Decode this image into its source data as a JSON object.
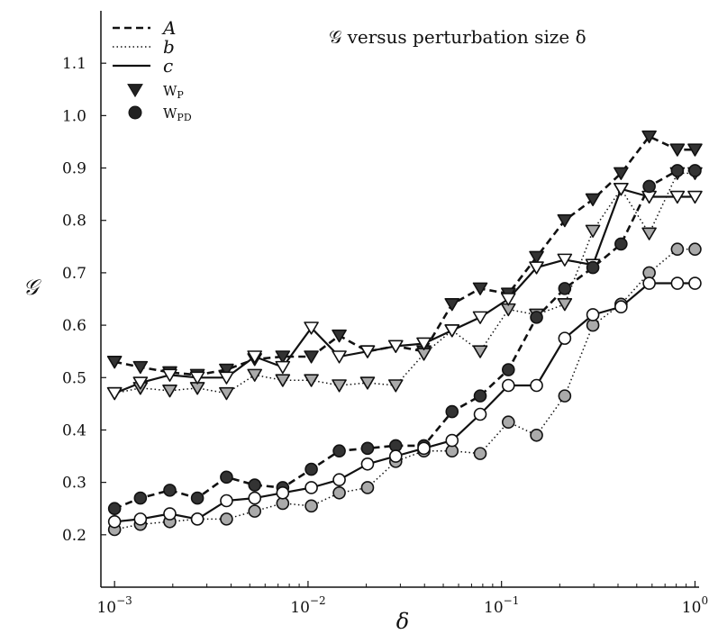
{
  "chart_data": {
    "type": "line",
    "title": "𝒢 versus perturbation size δ",
    "xlabel": "δ",
    "ylabel": "𝒢",
    "xscale": "log",
    "xlim": [
      0.00085,
      1.05
    ],
    "ylim": [
      0.1,
      1.2
    ],
    "y_ticks": [
      0.2,
      0.3,
      0.4,
      0.5,
      0.6,
      0.7,
      0.8,
      0.9,
      1.0,
      1.1
    ],
    "y_tick_labels": [
      "0.2",
      "0.3",
      "0.4",
      "0.5",
      "0.6",
      "0.7",
      "0.8",
      "0.9",
      "1.0",
      "1.1"
    ],
    "x_ticks": [
      0.001,
      0.01,
      0.1,
      1
    ],
    "x_tick_labels": [
      {
        "base": "10",
        "exp": "−3"
      },
      {
        "base": "10",
        "exp": "−2"
      },
      {
        "base": "10",
        "exp": "−1"
      },
      {
        "base": "10",
        "exp": "0"
      }
    ],
    "grid": false,
    "legend_position": "top-left",
    "legend": {
      "lines": [
        {
          "label": "A",
          "style": "dashed"
        },
        {
          "label": "b",
          "style": "dotted"
        },
        {
          "label": "c",
          "style": "solid"
        }
      ],
      "markers": [
        {
          "label_main": "W",
          "label_sub": "P",
          "marker": "triangle-down"
        },
        {
          "label_main": "W",
          "label_sub": "PD",
          "marker": "circle"
        }
      ]
    },
    "x": [
      0.001,
      0.00136,
      0.00193,
      0.00268,
      0.00379,
      0.0053,
      0.0074,
      0.0104,
      0.0145,
      0.0203,
      0.0284,
      0.0397,
      0.0555,
      0.0776,
      0.1085,
      0.1517,
      0.2122,
      0.2966,
      0.4147,
      0.5799,
      0.8108,
      1.0
    ],
    "series": [
      {
        "line": "A",
        "marker": "triangle-down",
        "fill": "#333333",
        "values": [
          0.53,
          0.52,
          0.51,
          0.505,
          0.515,
          0.535,
          0.54,
          0.54,
          0.58,
          0.55,
          0.56,
          0.55,
          0.64,
          0.67,
          0.66,
          0.73,
          0.8,
          0.84,
          0.89,
          0.96,
          0.935,
          0.935
        ]
      },
      {
        "line": "b",
        "marker": "triangle-down",
        "fill": "#aaaaaa",
        "values": [
          0.47,
          0.48,
          0.475,
          0.48,
          0.47,
          0.505,
          0.495,
          0.495,
          0.485,
          0.49,
          0.485,
          0.545,
          0.59,
          0.55,
          0.63,
          0.62,
          0.64,
          0.78,
          0.86,
          0.775,
          0.89,
          0.89
        ]
      },
      {
        "line": "c",
        "marker": "triangle-down",
        "fill": "#ffffff",
        "values": [
          0.47,
          0.49,
          0.505,
          0.5,
          0.5,
          0.54,
          0.52,
          0.595,
          0.54,
          0.55,
          0.56,
          0.565,
          0.59,
          0.615,
          0.65,
          0.71,
          0.725,
          0.715,
          0.86,
          0.845,
          0.845,
          0.845
        ]
      },
      {
        "line": "A",
        "marker": "circle",
        "fill": "#333333",
        "values": [
          0.25,
          0.27,
          0.285,
          0.27,
          0.31,
          0.295,
          0.29,
          0.325,
          0.36,
          0.365,
          0.37,
          0.37,
          0.435,
          0.465,
          0.515,
          0.615,
          0.67,
          0.71,
          0.755,
          0.865,
          0.895,
          0.895
        ]
      },
      {
        "line": "b",
        "marker": "circle",
        "fill": "#aaaaaa",
        "values": [
          0.21,
          0.22,
          0.225,
          0.23,
          0.23,
          0.245,
          0.26,
          0.255,
          0.28,
          0.29,
          0.34,
          0.36,
          0.36,
          0.355,
          0.415,
          0.39,
          0.465,
          0.6,
          0.64,
          0.7,
          0.745,
          0.745
        ]
      },
      {
        "line": "c",
        "marker": "circle",
        "fill": "#ffffff",
        "values": [
          0.225,
          0.23,
          0.24,
          0.23,
          0.265,
          0.27,
          0.28,
          0.29,
          0.305,
          0.335,
          0.35,
          0.365,
          0.38,
          0.43,
          0.485,
          0.485,
          0.575,
          0.62,
          0.635,
          0.68,
          0.68,
          0.68
        ]
      }
    ]
  }
}
